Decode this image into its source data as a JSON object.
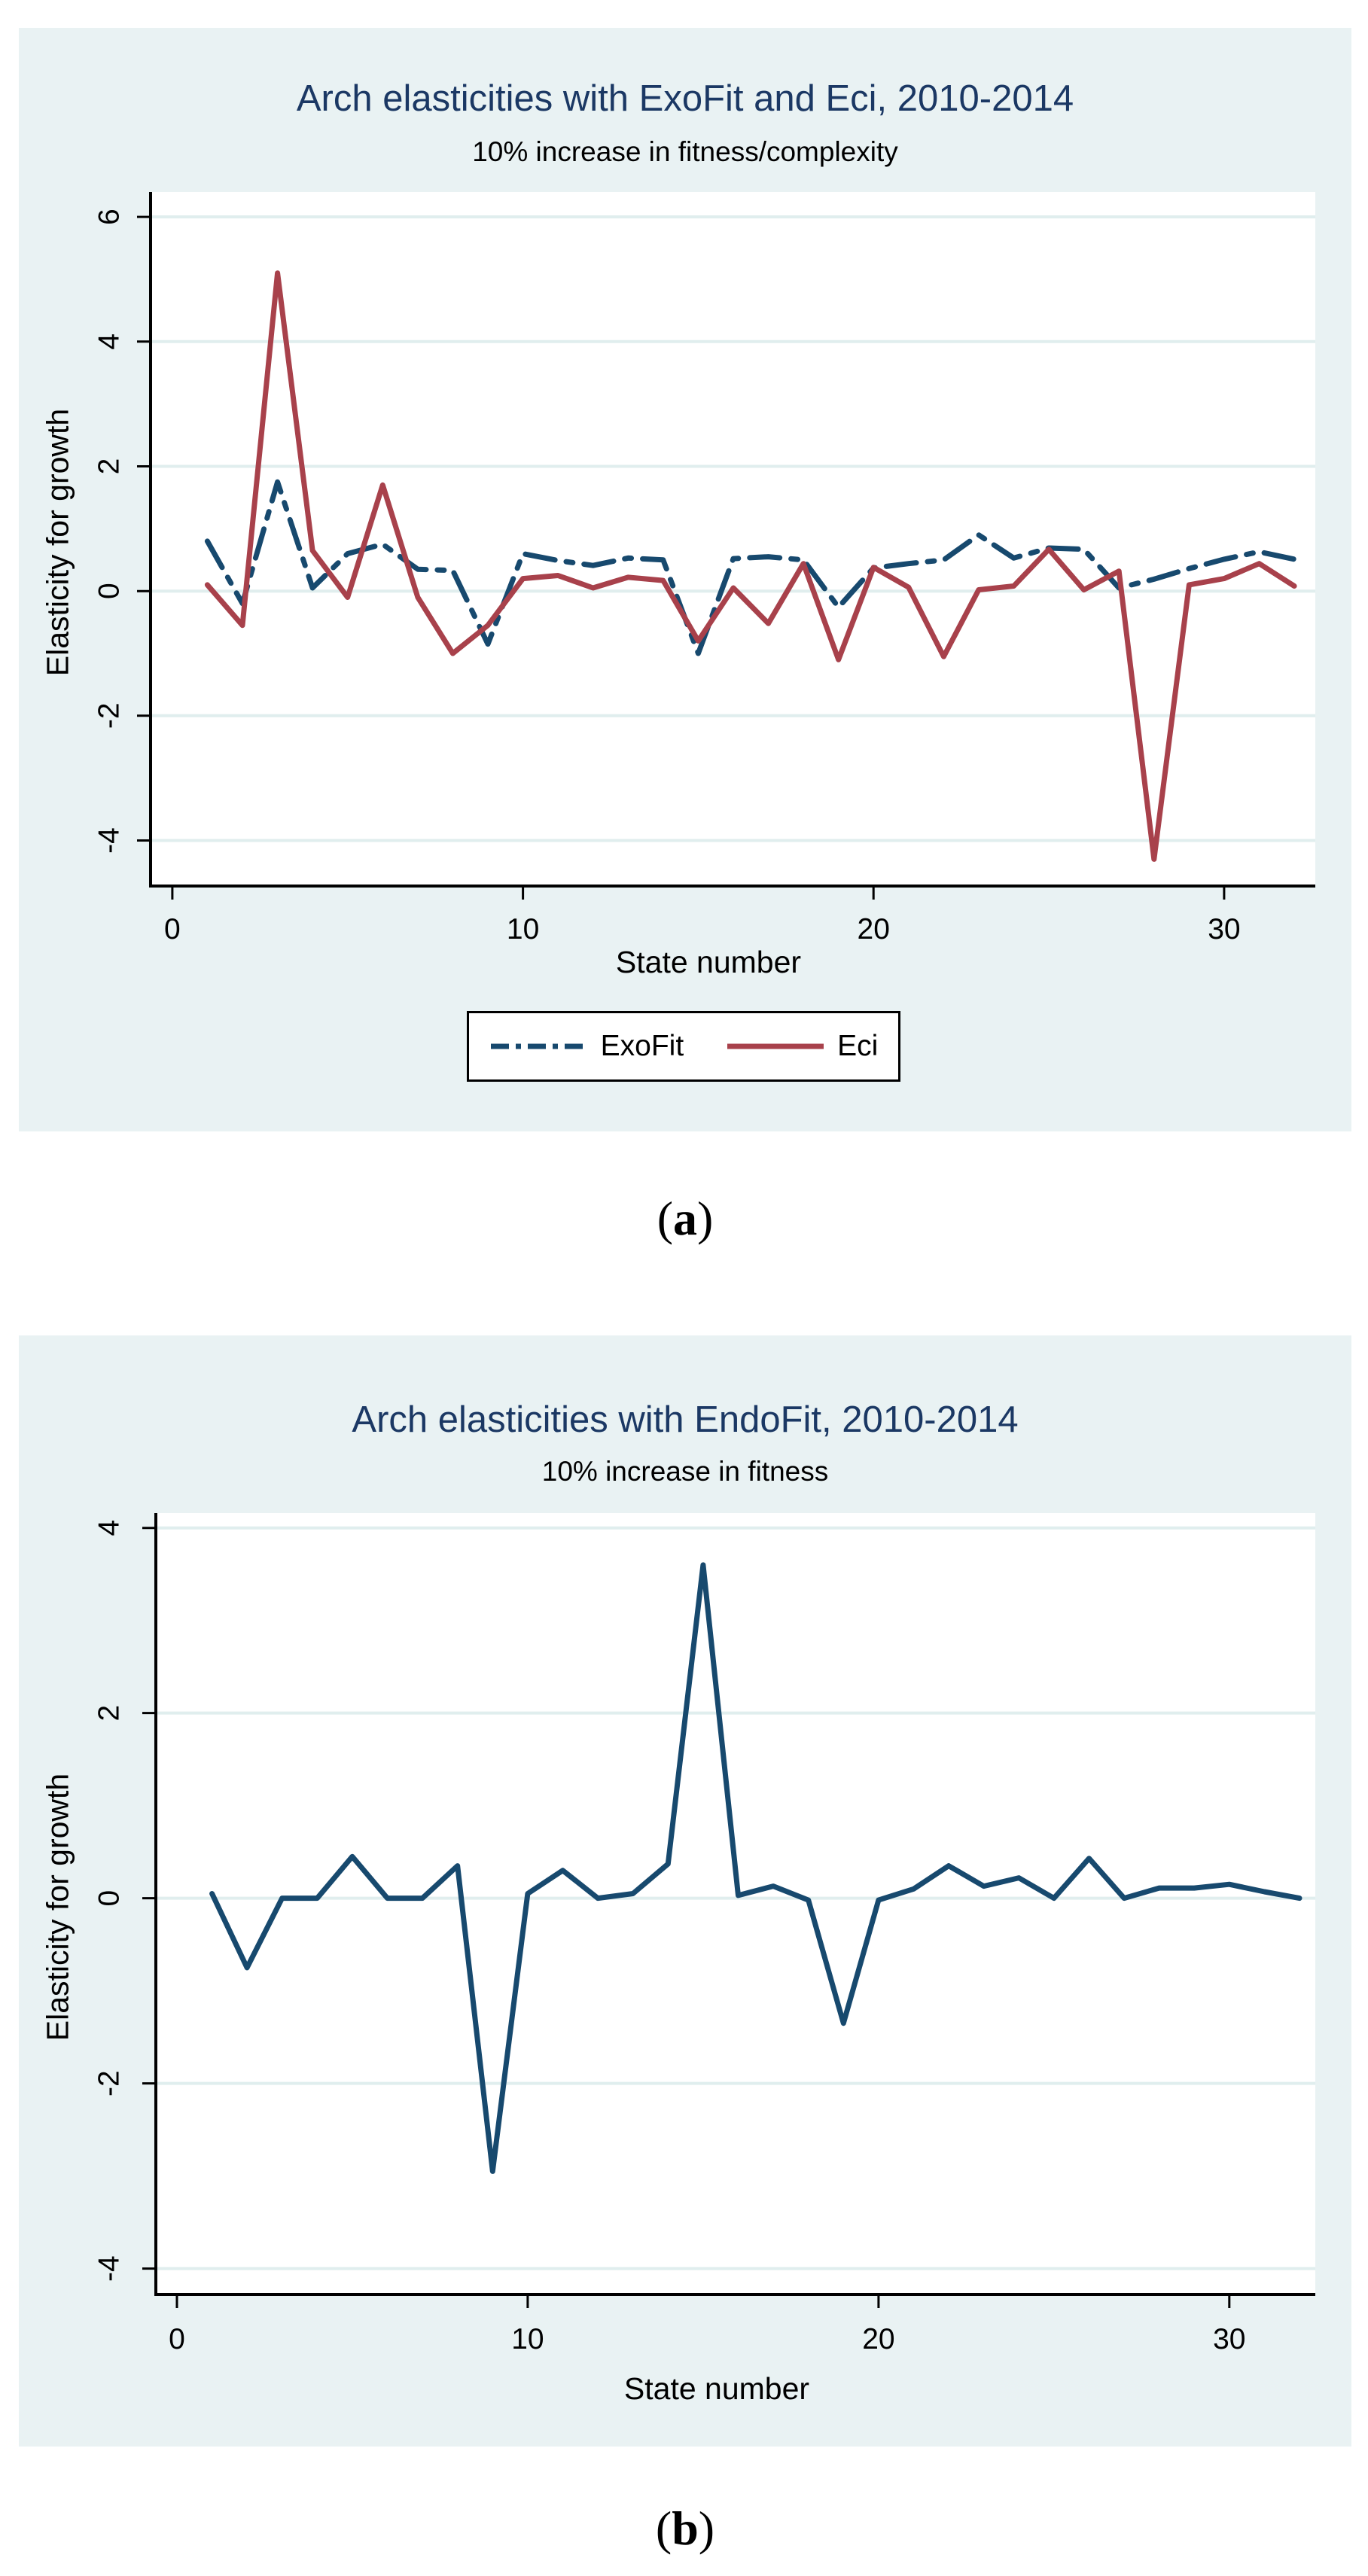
{
  "colors": {
    "page_bg": "#ffffff",
    "card_bg": "#e9f2f3",
    "plot_bg": "#ffffff",
    "grid": "#e0eeee",
    "axis": "#000000",
    "title_navy": "#1b3864",
    "navy_line": "#17496e",
    "red_line": "#a8414b"
  },
  "captions": {
    "a": {
      "open": "(",
      "letter": "a",
      "close": ")"
    },
    "b": {
      "open": "(",
      "letter": "b",
      "close": ")"
    }
  },
  "chart_data": [
    {
      "id": "a",
      "type": "line",
      "title": "Arch elasticities with ExoFit and Eci, 2010-2014",
      "subtitle": "10% increase in fitness/complexity",
      "xlabel": "State number",
      "ylabel": "Elasticity for growth",
      "x_ticks": [
        0,
        10,
        20,
        30
      ],
      "y_ticks": [
        6,
        4,
        2,
        0,
        -2,
        -4
      ],
      "xlim": [
        -0.62,
        32.6
      ],
      "ylim": [
        -4.73,
        6.4
      ],
      "grid": "horizontal",
      "legend_position": "bottom-center",
      "x": [
        1,
        2,
        3,
        4,
        5,
        6,
        7,
        8,
        9,
        10,
        11,
        12,
        13,
        14,
        15,
        16,
        17,
        18,
        19,
        20,
        21,
        22,
        23,
        24,
        25,
        26,
        27,
        28,
        29,
        30,
        31,
        32
      ],
      "series": [
        {
          "name": "ExoFit",
          "style": "dash-dot",
          "color": "#17496e",
          "values": [
            0.8,
            -0.2,
            1.75,
            0.05,
            0.6,
            0.75,
            0.35,
            0.33,
            -0.85,
            0.6,
            0.49,
            0.41,
            0.53,
            0.5,
            -1.0,
            0.52,
            0.55,
            0.5,
            -0.26,
            0.37,
            0.44,
            0.5,
            0.9,
            0.53,
            0.69,
            0.67,
            0.05,
            0.19,
            0.36,
            0.51,
            0.63,
            0.51
          ]
        },
        {
          "name": "Eci",
          "style": "solid",
          "color": "#a8414b",
          "values": [
            0.1,
            -0.55,
            5.1,
            0.65,
            -0.1,
            1.7,
            -0.1,
            -1.0,
            -0.55,
            0.2,
            0.25,
            0.05,
            0.22,
            0.17,
            -0.8,
            0.05,
            -0.52,
            0.44,
            -1.1,
            0.38,
            0.06,
            -1.05,
            0.02,
            0.08,
            0.67,
            0.02,
            0.32,
            -4.3,
            0.1,
            0.2,
            0.44,
            0.08
          ]
        }
      ]
    },
    {
      "id": "b",
      "type": "line",
      "title": "Arch elasticities with EndoFit, 2010-2014",
      "subtitle": "10% increase in fitness",
      "xlabel": "State number",
      "ylabel": "Elasticity for growth",
      "x_ticks": [
        0,
        10,
        20,
        30
      ],
      "y_ticks": [
        4,
        2,
        0,
        -2,
        -4
      ],
      "xlim": [
        -0.6,
        32.45
      ],
      "ylim": [
        -4.28,
        4.16
      ],
      "grid": "horizontal",
      "legend_position": "none",
      "x": [
        1,
        2,
        3,
        4,
        5,
        6,
        7,
        8,
        9,
        10,
        11,
        12,
        13,
        14,
        15,
        16,
        17,
        18,
        19,
        20,
        21,
        22,
        23,
        24,
        25,
        26,
        27,
        28,
        29,
        30,
        31,
        32
      ],
      "series": [
        {
          "name": "EndoFit",
          "style": "solid",
          "color": "#17496e",
          "values": [
            0.05,
            -0.75,
            0.0,
            0.0,
            0.45,
            0.0,
            0.0,
            0.35,
            -2.95,
            0.05,
            0.3,
            0.0,
            0.05,
            0.37,
            3.6,
            0.03,
            0.13,
            -0.02,
            -1.35,
            -0.02,
            0.1,
            0.35,
            0.13,
            0.22,
            0.0,
            0.43,
            0.0,
            0.11,
            0.11,
            0.15,
            0.07,
            0.0
          ]
        }
      ]
    }
  ]
}
